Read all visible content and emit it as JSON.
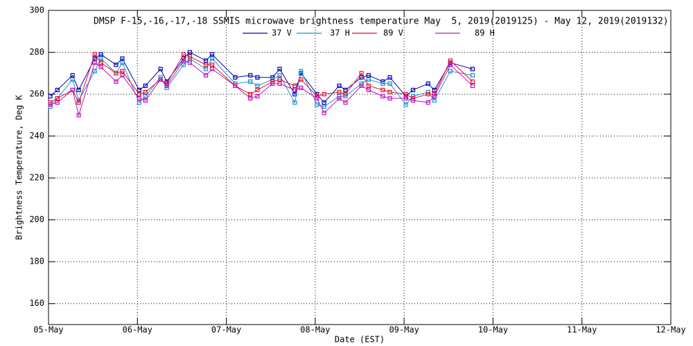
{
  "chart_data": {
    "type": "line",
    "title": "DMSP F-15,-16,-17,-18 SSMIS microwave brightness temperature May  5, 2019(2019125) - May 12, 2019(2019132)",
    "x_label": "Date (EST)",
    "y_label": "Brightness Temperature, Deg K",
    "x": [
      0.02,
      0.1,
      0.27,
      0.34,
      0.52,
      0.59,
      0.76,
      0.83,
      1.02,
      1.09,
      1.26,
      1.33,
      1.52,
      1.59,
      1.77,
      1.84,
      2.1,
      2.27,
      2.35,
      2.52,
      2.6,
      2.77,
      2.84,
      3.02,
      3.1,
      3.27,
      3.34,
      3.52,
      3.6,
      3.76,
      3.84,
      4.02,
      4.1,
      4.27,
      4.34,
      4.52,
      4.77
    ],
    "series": [
      {
        "name": "37 V",
        "color": "#0000b0",
        "values": [
          259,
          262,
          269,
          262,
          277,
          279,
          274,
          277,
          262,
          264,
          272,
          266,
          277,
          280,
          276,
          279,
          268,
          269,
          268,
          268,
          272,
          260,
          270,
          260,
          256,
          264,
          262,
          268,
          269,
          266,
          268,
          259,
          262,
          265,
          262,
          275,
          272
        ]
      },
      {
        "name": "37 H",
        "color": "#1a90d0",
        "values": [
          254,
          258,
          267,
          257,
          271,
          277,
          270,
          275,
          256,
          259,
          268,
          263,
          274,
          277,
          272,
          277,
          265,
          266,
          264,
          267,
          269,
          256,
          271,
          255,
          254,
          259,
          259,
          265,
          267,
          265,
          265,
          255,
          259,
          261,
          257,
          271,
          269
        ]
      },
      {
        "name": "89 V",
        "color": "#e0102a",
        "values": [
          256,
          258,
          262,
          256,
          279,
          275,
          270,
          271,
          260,
          261,
          267,
          265,
          279,
          278,
          274,
          274,
          264,
          260,
          262,
          266,
          267,
          264,
          267,
          259,
          260,
          261,
          260,
          270,
          264,
          262,
          261,
          260,
          258,
          260,
          260,
          276,
          266
        ]
      },
      {
        "name": "89 H",
        "color": "#c010c0",
        "values": [
          255,
          256,
          262,
          250,
          275,
          273,
          266,
          269,
          258,
          257,
          267,
          264,
          276,
          275,
          269,
          272,
          264,
          258,
          259,
          265,
          265,
          262,
          263,
          258,
          251,
          258,
          256,
          264,
          262,
          259,
          258,
          258,
          257,
          256,
          259,
          274,
          264
        ]
      }
    ],
    "xlim": [
      0,
      7
    ],
    "xticks": [
      {
        "value": 0,
        "label": "05-May"
      },
      {
        "value": 1,
        "label": "06-May"
      },
      {
        "value": 2,
        "label": "07-May"
      },
      {
        "value": 3,
        "label": "08-May"
      },
      {
        "value": 4,
        "label": "09-May"
      },
      {
        "value": 5,
        "label": "10-May"
      },
      {
        "value": 6,
        "label": "11-May"
      },
      {
        "value": 7,
        "label": "12-May"
      }
    ],
    "ylim": [
      150,
      300
    ],
    "yticks": [
      160,
      180,
      200,
      220,
      240,
      260,
      280,
      300
    ],
    "grid": true,
    "markers": "square"
  }
}
